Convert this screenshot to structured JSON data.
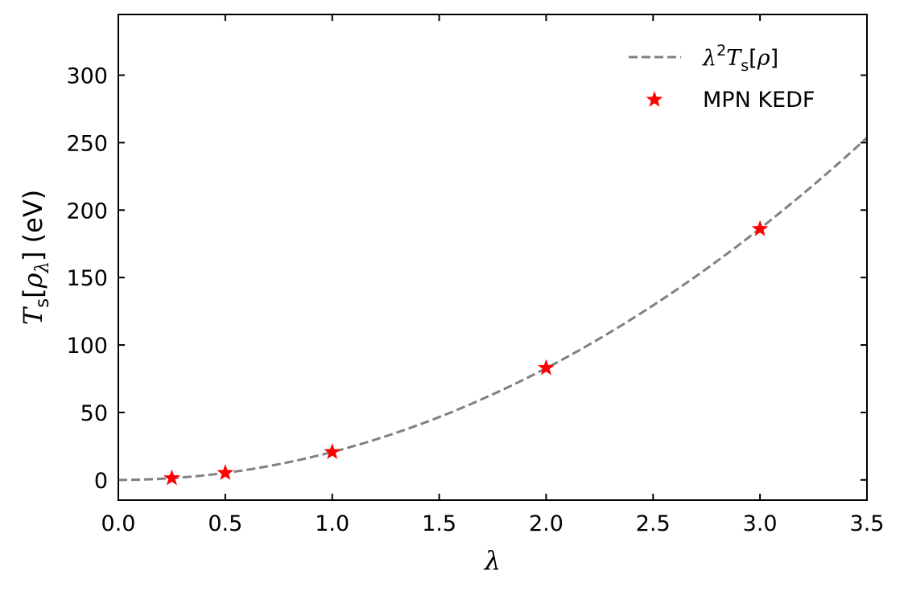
{
  "chart_data": {
    "type": "line",
    "xlabel": "λ",
    "ylabel": {
      "symbol": "T",
      "sub": "s",
      "open": "[",
      "rho": "ρ",
      "rho_sub": "λ",
      "close": "]",
      "unit": " (eV)"
    },
    "xlim": [
      0,
      3.5
    ],
    "ylim": [
      -15,
      345
    ],
    "xticks": [
      "0.0",
      "0.5",
      "1.0",
      "1.5",
      "2.0",
      "2.5",
      "3.0",
      "3.5"
    ],
    "yticks": [
      "0",
      "50",
      "100",
      "150",
      "200",
      "250",
      "300"
    ],
    "grid": false,
    "legend_position": "top-right",
    "series": [
      {
        "name": "λ²Tₛ[ρ]",
        "kind": "curve",
        "style": "dashed",
        "color": "#808080",
        "formula": "20.7 * x^2",
        "coefficient": 20.7
      },
      {
        "name": "MPN KEDF",
        "kind": "scatter",
        "marker": "star",
        "color": "#ff0000",
        "x": [
          0.25,
          0.5,
          1.0,
          2.0,
          3.0
        ],
        "y": [
          1.3,
          5.2,
          20.7,
          83.0,
          186.0
        ]
      }
    ]
  },
  "legend": {
    "curve_label": {
      "lambda": "λ",
      "sup": "2",
      "T": "T",
      "sub": "s",
      "open": "[",
      "rho": "ρ",
      "close": "]"
    },
    "scatter_label": "MPN KEDF"
  }
}
